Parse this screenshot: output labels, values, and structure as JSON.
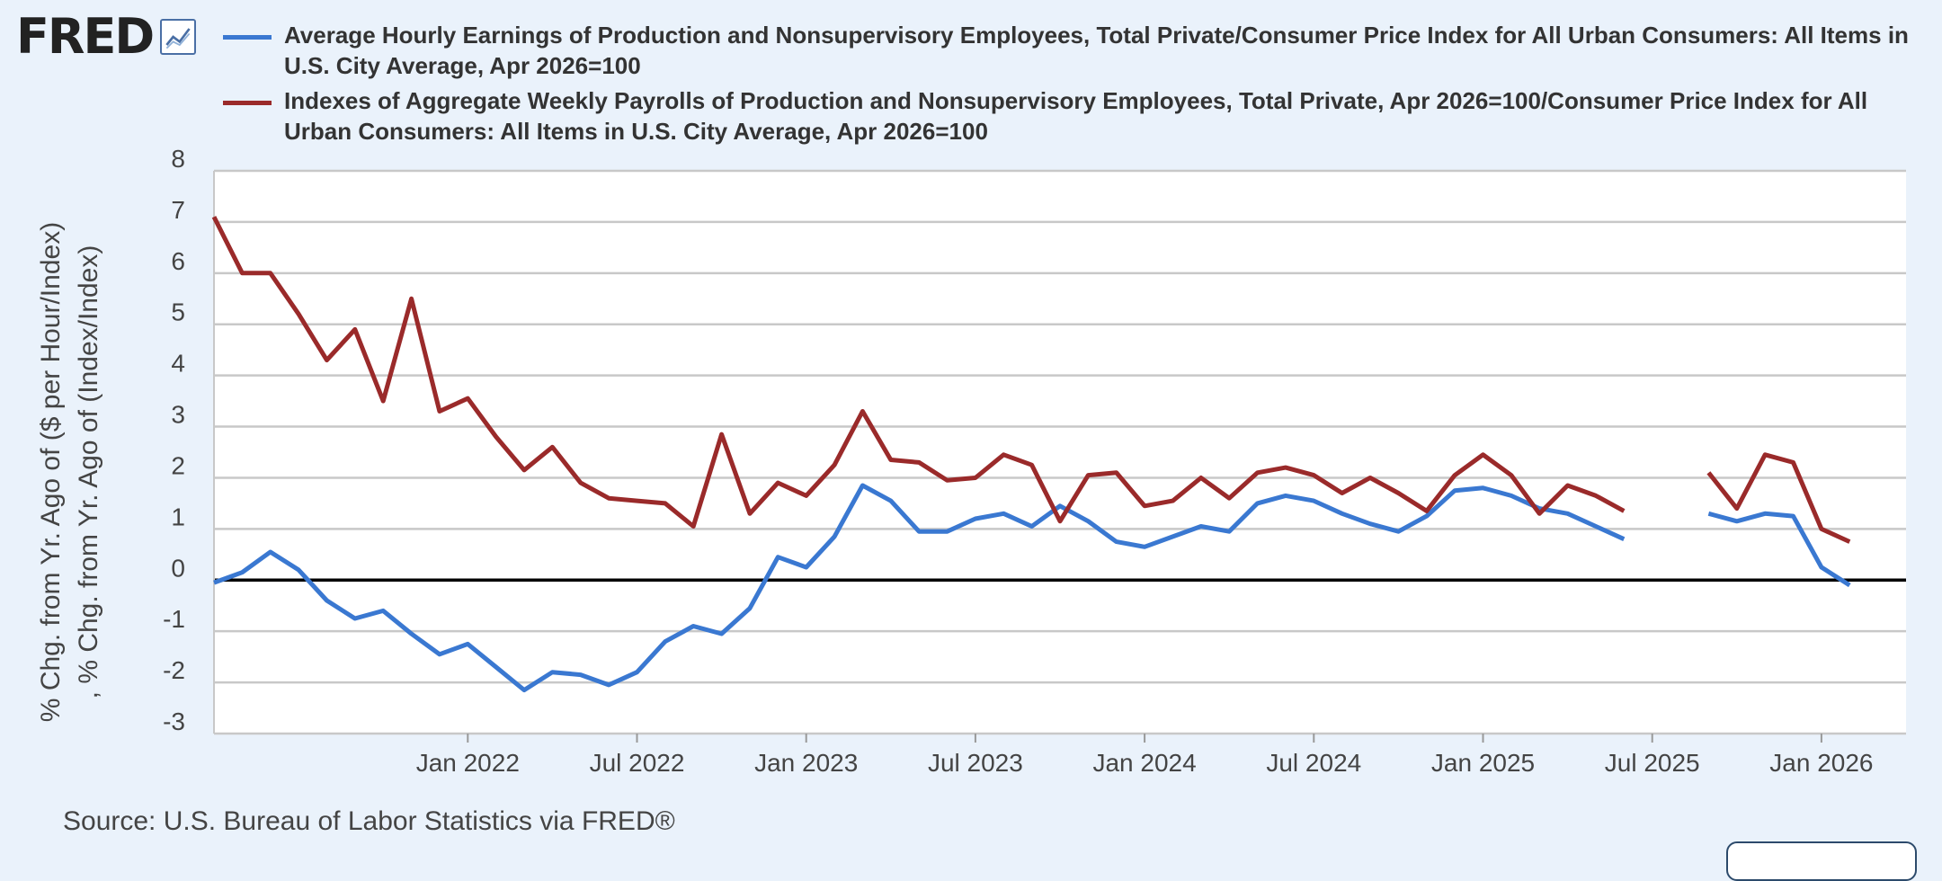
{
  "brand": {
    "logo_text": "FRED"
  },
  "source_text": "Source: U.S. Bureau of Labor Statistics via FRED®",
  "colors": {
    "series1": "#3a78d1",
    "series2": "#9a2a2a",
    "grid": "#c8c8c8",
    "zero": "#000000",
    "plot_bg": "#ffffff"
  },
  "chart_data": {
    "type": "line",
    "title": "",
    "ylabel_lines": [
      "% Chg. from Yr. Ago of ($ per Hour/Index)",
      ", % Chg. from Yr. Ago of (Index/Index)"
    ],
    "ylim": [
      -3,
      8
    ],
    "yticks": [
      -3,
      -2,
      -1,
      0,
      1,
      2,
      3,
      4,
      5,
      6,
      7,
      8
    ],
    "xlim": [
      "2021-04",
      "2026-04"
    ],
    "xticks": [
      {
        "date": "2022-01",
        "label": "Jan 2022"
      },
      {
        "date": "2022-07",
        "label": "Jul 2022"
      },
      {
        "date": "2023-01",
        "label": "Jan 2023"
      },
      {
        "date": "2023-07",
        "label": "Jul 2023"
      },
      {
        "date": "2024-01",
        "label": "Jan 2024"
      },
      {
        "date": "2024-07",
        "label": "Jul 2024"
      },
      {
        "date": "2025-01",
        "label": "Jan 2025"
      },
      {
        "date": "2025-07",
        "label": "Jul 2025"
      },
      {
        "date": "2026-01",
        "label": "Jan 2026"
      }
    ],
    "grid": true,
    "start_date": "2021-04",
    "series": [
      {
        "name": "Average Hourly Earnings of Production and Nonsupervisory Employees, Total Private/Consumer Price Index for All Urban Consumers: All Items in U.S. City Average, Apr 2026=100",
        "color": "#3a78d1",
        "values": [
          -0.05,
          0.15,
          0.55,
          0.2,
          -0.4,
          -0.75,
          -0.6,
          -1.05,
          -1.45,
          -1.25,
          -1.7,
          -2.15,
          -1.8,
          -1.85,
          -2.05,
          -1.8,
          -1.2,
          -0.9,
          -1.05,
          -0.55,
          0.45,
          0.25,
          0.85,
          1.85,
          1.55,
          0.95,
          0.95,
          1.2,
          1.3,
          1.05,
          1.45,
          1.15,
          0.75,
          0.65,
          0.85,
          1.05,
          0.95,
          1.5,
          1.65,
          1.55,
          1.3,
          1.1,
          0.95,
          1.25,
          1.75,
          1.8,
          1.65,
          1.4,
          1.3,
          1.05,
          0.8,
          null,
          null,
          1.3,
          1.15,
          1.3,
          1.25,
          0.25,
          -0.1
        ]
      },
      {
        "name": "Indexes of Aggregate Weekly Payrolls of Production and Nonsupervisory Employees, Total Private, Apr 2026=100/Consumer Price Index for All Urban Consumers: All Items in U.S. City Average, Apr 2026=100",
        "color": "#9a2a2a",
        "values": [
          7.1,
          6.0,
          6.0,
          5.2,
          4.3,
          4.9,
          3.5,
          5.5,
          3.3,
          3.55,
          2.8,
          2.15,
          2.6,
          1.9,
          1.6,
          1.55,
          1.5,
          1.05,
          2.85,
          1.3,
          1.9,
          1.65,
          2.25,
          3.3,
          2.35,
          2.3,
          1.95,
          2.0,
          2.45,
          2.25,
          1.15,
          2.05,
          2.1,
          1.45,
          1.55,
          2.0,
          1.6,
          2.1,
          2.2,
          2.05,
          1.7,
          2.0,
          1.7,
          1.35,
          2.05,
          2.45,
          2.05,
          1.3,
          1.85,
          1.65,
          1.35,
          null,
          null,
          2.1,
          1.4,
          2.45,
          2.3,
          1.0,
          0.75
        ]
      }
    ]
  }
}
